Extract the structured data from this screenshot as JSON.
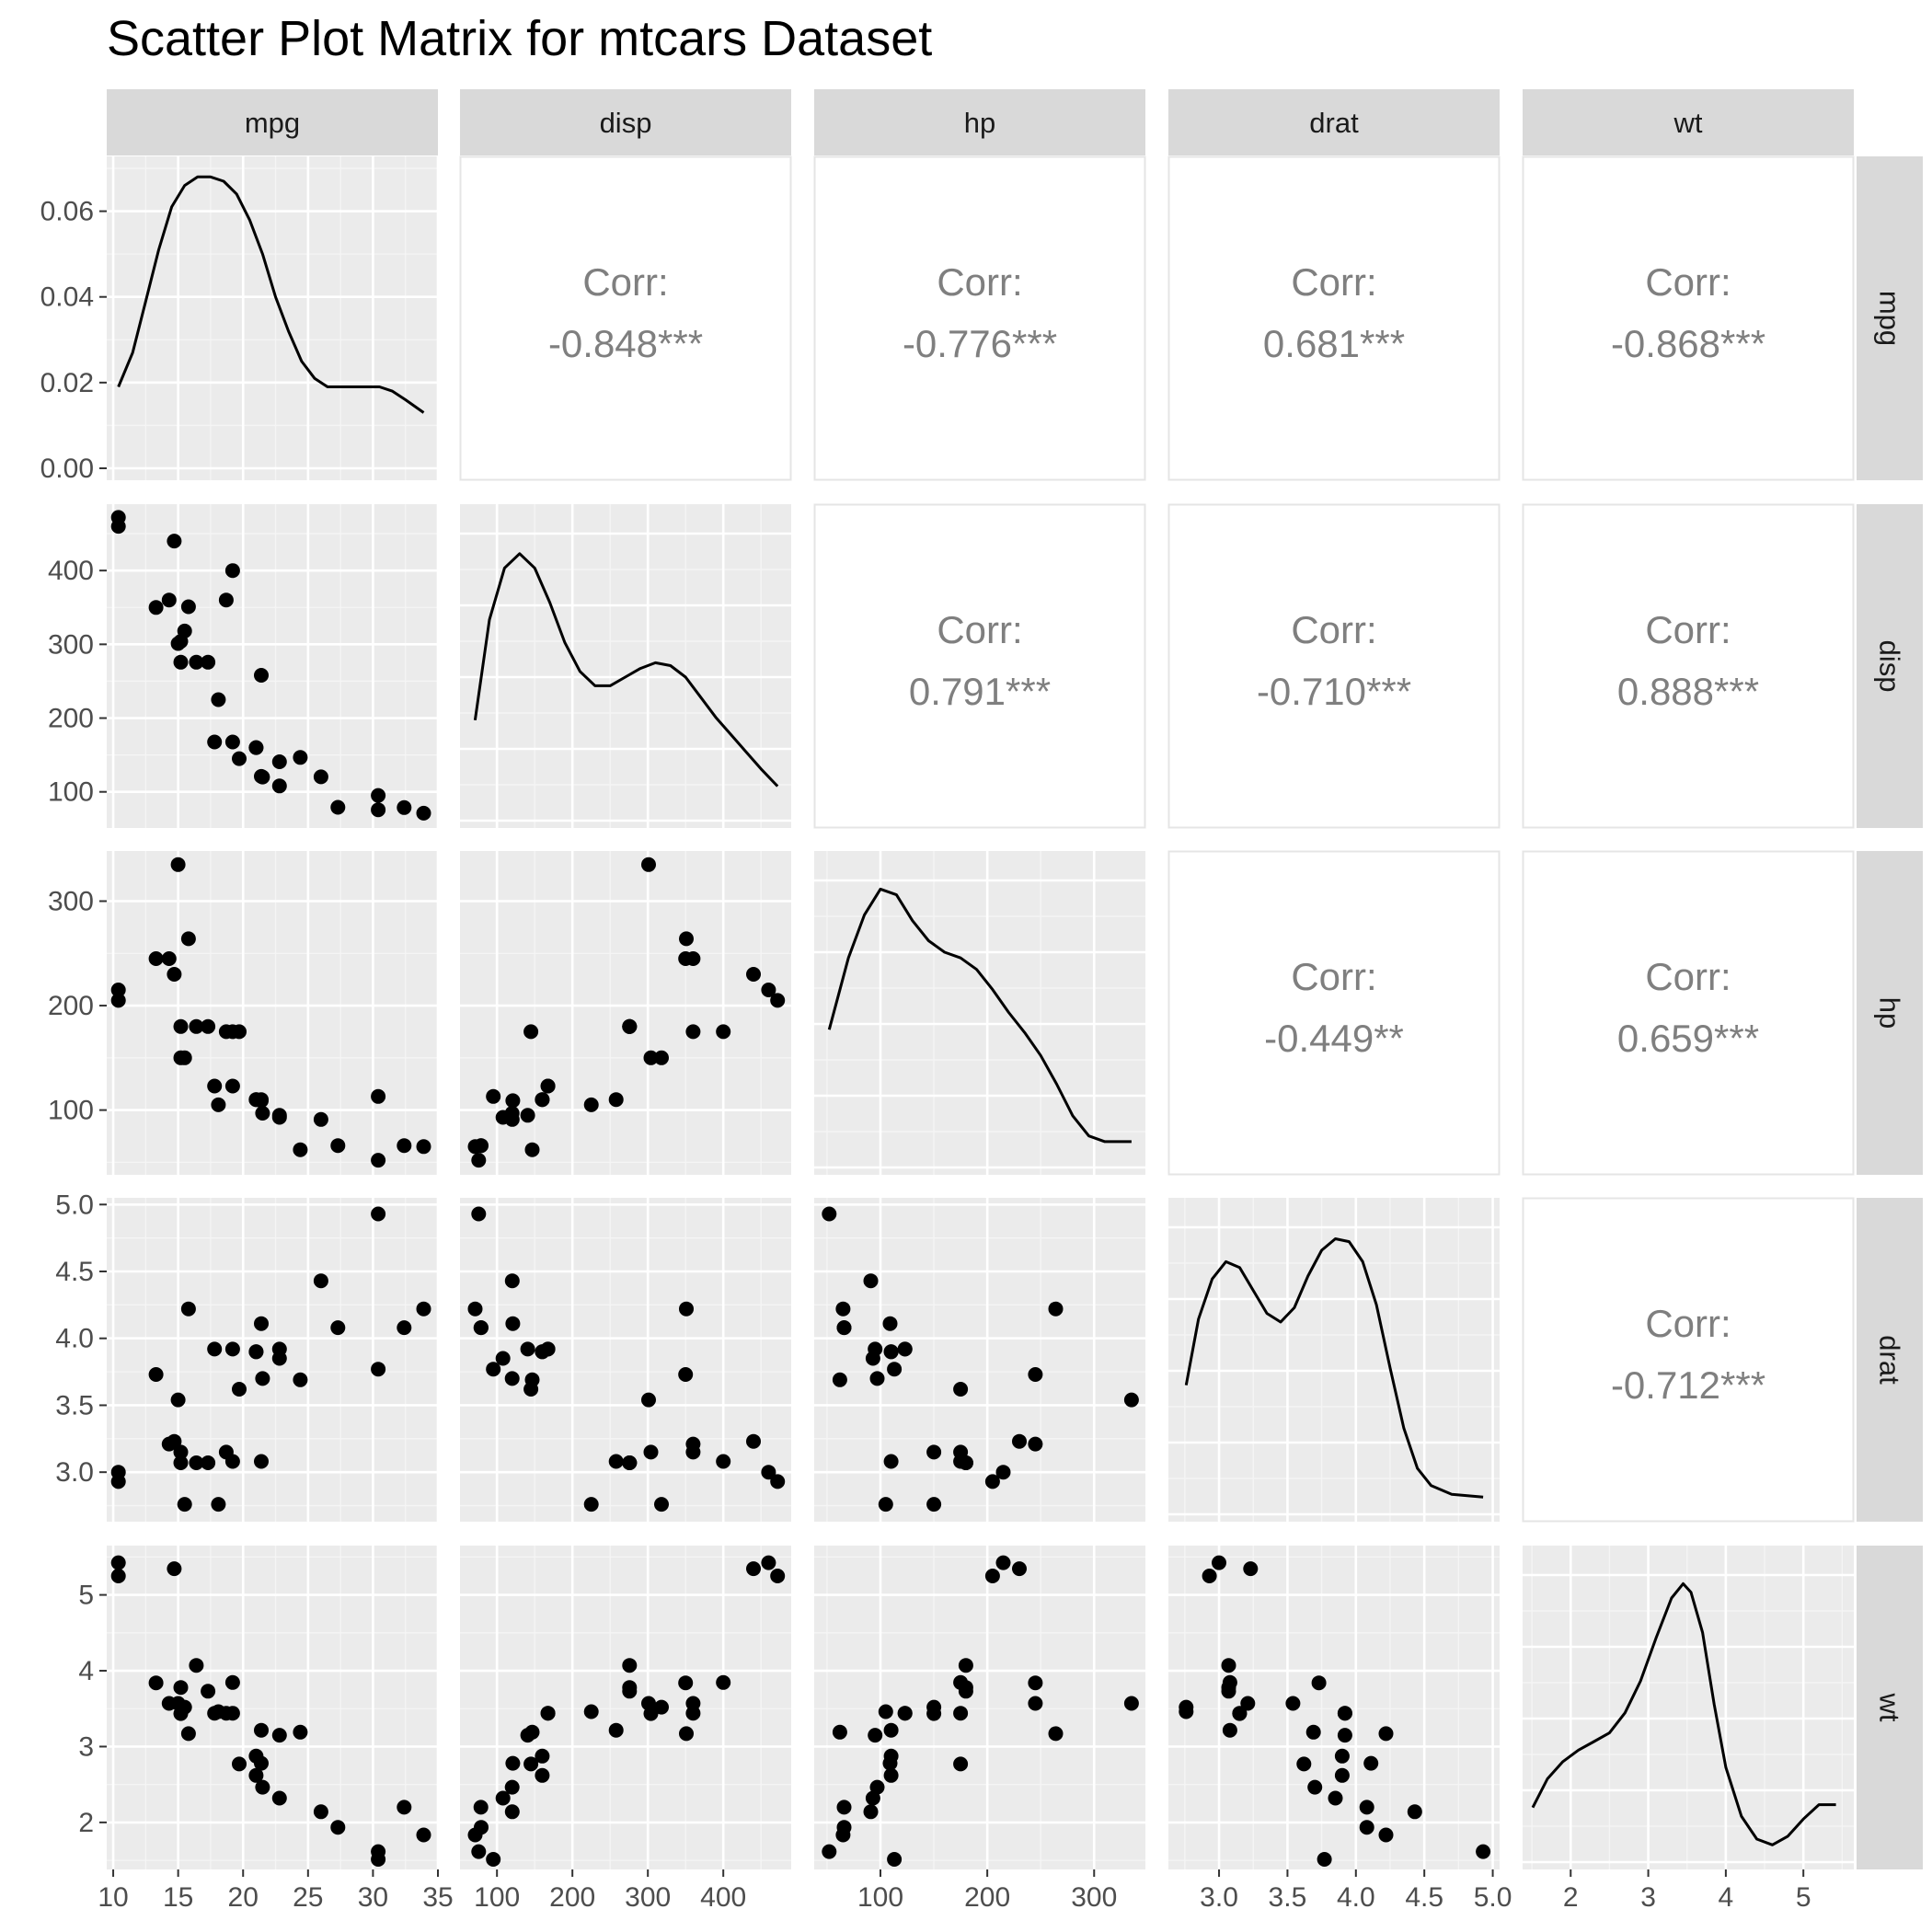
{
  "chart_data": {
    "type": "scatter",
    "title": "Scatter Plot Matrix for mtcars Dataset",
    "variables": [
      "mpg",
      "disp",
      "hp",
      "drat",
      "wt"
    ],
    "corr_label": "Corr:",
    "correlations": {
      "0_1": "-0.848***",
      "0_2": "-0.776***",
      "0_3": "0.681***",
      "0_4": "-0.868***",
      "1_2": "0.791***",
      "1_3": "-0.710***",
      "1_4": "0.888***",
      "2_3": "-0.449**",
      "2_4": "0.659***",
      "3_4": "-0.712***"
    },
    "ranges": {
      "mpg": [
        9.5,
        35.0
      ],
      "disp": [
        51,
        490
      ],
      "hp": [
        38,
        348
      ],
      "drat": [
        2.63,
        5.05
      ],
      "wt": [
        1.38,
        5.65
      ]
    },
    "ticks": {
      "mpg": [
        10,
        15,
        20,
        25,
        30,
        35
      ],
      "disp": [
        100,
        200,
        300,
        400
      ],
      "hp": [
        100,
        200,
        300
      ],
      "drat": [
        3.0,
        3.5,
        4.0,
        4.5,
        5.0
      ],
      "wt": [
        2,
        3,
        4,
        5
      ]
    },
    "tick_labels": {
      "mpg": [
        "10",
        "15",
        "20",
        "25",
        "30",
        "35"
      ],
      "disp": [
        "100",
        "200",
        "300",
        "400"
      ],
      "hp": [
        "100",
        "200",
        "300"
      ],
      "drat": [
        "3.0",
        "3.5",
        "4.0",
        "4.5",
        "5.0"
      ],
      "wt": [
        "2",
        "3",
        "4",
        "5"
      ]
    },
    "density_axis": {
      "range": [
        0,
        0.07
      ],
      "ticks": [
        0.0,
        0.02,
        0.04,
        0.06
      ],
      "tick_labels": [
        "0.00",
        "0.02",
        "0.04",
        "0.06"
      ]
    },
    "densities": {
      "mpg": [
        [
          10.4,
          0.019
        ],
        [
          11.5,
          0.027
        ],
        [
          12.5,
          0.039
        ],
        [
          13.5,
          0.051
        ],
        [
          14.5,
          0.061
        ],
        [
          15.5,
          0.066
        ],
        [
          16.5,
          0.068
        ],
        [
          17.5,
          0.068
        ],
        [
          18.5,
          0.067
        ],
        [
          19.5,
          0.064
        ],
        [
          20.5,
          0.058
        ],
        [
          21.5,
          0.05
        ],
        [
          22.5,
          0.04
        ],
        [
          23.5,
          0.032
        ],
        [
          24.5,
          0.025
        ],
        [
          25.5,
          0.021
        ],
        [
          26.5,
          0.019
        ],
        [
          27.5,
          0.019
        ],
        [
          28.5,
          0.019
        ],
        [
          29.5,
          0.019
        ],
        [
          30.5,
          0.019
        ],
        [
          31.5,
          0.018
        ],
        [
          32.5,
          0.016
        ],
        [
          33.9,
          0.013
        ]
      ],
      "disp": [
        [
          71,
          0.35
        ],
        [
          90,
          0.7
        ],
        [
          110,
          0.88
        ],
        [
          130,
          0.93
        ],
        [
          150,
          0.88
        ],
        [
          170,
          0.76
        ],
        [
          190,
          0.62
        ],
        [
          210,
          0.52
        ],
        [
          230,
          0.47
        ],
        [
          250,
          0.47
        ],
        [
          270,
          0.5
        ],
        [
          290,
          0.53
        ],
        [
          310,
          0.55
        ],
        [
          330,
          0.54
        ],
        [
          350,
          0.5
        ],
        [
          370,
          0.43
        ],
        [
          390,
          0.36
        ],
        [
          410,
          0.3
        ],
        [
          430,
          0.24
        ],
        [
          450,
          0.18
        ],
        [
          472,
          0.12
        ]
      ],
      "hp": [
        [
          52,
          0.48
        ],
        [
          70,
          0.73
        ],
        [
          85,
          0.88
        ],
        [
          100,
          0.97
        ],
        [
          115,
          0.95
        ],
        [
          130,
          0.86
        ],
        [
          145,
          0.79
        ],
        [
          160,
          0.75
        ],
        [
          175,
          0.73
        ],
        [
          190,
          0.69
        ],
        [
          205,
          0.62
        ],
        [
          220,
          0.54
        ],
        [
          235,
          0.47
        ],
        [
          250,
          0.39
        ],
        [
          265,
          0.29
        ],
        [
          280,
          0.18
        ],
        [
          295,
          0.11
        ],
        [
          310,
          0.09
        ],
        [
          335,
          0.09
        ]
      ],
      "drat": [
        [
          2.76,
          0.45
        ],
        [
          2.85,
          0.68
        ],
        [
          2.95,
          0.82
        ],
        [
          3.05,
          0.88
        ],
        [
          3.15,
          0.86
        ],
        [
          3.25,
          0.78
        ],
        [
          3.35,
          0.7
        ],
        [
          3.45,
          0.67
        ],
        [
          3.55,
          0.72
        ],
        [
          3.65,
          0.83
        ],
        [
          3.75,
          0.92
        ],
        [
          3.85,
          0.96
        ],
        [
          3.95,
          0.95
        ],
        [
          4.05,
          0.88
        ],
        [
          4.15,
          0.73
        ],
        [
          4.25,
          0.51
        ],
        [
          4.35,
          0.3
        ],
        [
          4.45,
          0.16
        ],
        [
          4.55,
          0.1
        ],
        [
          4.7,
          0.07
        ],
        [
          4.93,
          0.06
        ]
      ],
      "wt": [
        [
          1.51,
          0.19
        ],
        [
          1.7,
          0.29
        ],
        [
          1.9,
          0.35
        ],
        [
          2.1,
          0.39
        ],
        [
          2.3,
          0.42
        ],
        [
          2.5,
          0.45
        ],
        [
          2.7,
          0.52
        ],
        [
          2.9,
          0.63
        ],
        [
          3.1,
          0.78
        ],
        [
          3.3,
          0.92
        ],
        [
          3.45,
          0.97
        ],
        [
          3.55,
          0.94
        ],
        [
          3.7,
          0.8
        ],
        [
          3.85,
          0.55
        ],
        [
          4.0,
          0.33
        ],
        [
          4.2,
          0.16
        ],
        [
          4.4,
          0.08
        ],
        [
          4.6,
          0.06
        ],
        [
          4.8,
          0.09
        ],
        [
          5.0,
          0.15
        ],
        [
          5.2,
          0.2
        ],
        [
          5.42,
          0.2
        ]
      ]
    },
    "rows": [
      [
        21.0,
        160,
        110,
        3.9,
        2.62
      ],
      [
        21.0,
        160,
        110,
        3.9,
        2.875
      ],
      [
        22.8,
        108,
        93,
        3.85,
        2.32
      ],
      [
        21.4,
        258,
        110,
        3.08,
        3.215
      ],
      [
        18.7,
        360,
        175,
        3.15,
        3.44
      ],
      [
        18.1,
        225,
        105,
        2.76,
        3.46
      ],
      [
        14.3,
        360,
        245,
        3.21,
        3.57
      ],
      [
        24.4,
        146.7,
        62,
        3.69,
        3.19
      ],
      [
        22.8,
        140.8,
        95,
        3.92,
        3.15
      ],
      [
        19.2,
        167.6,
        123,
        3.92,
        3.44
      ],
      [
        17.8,
        167.6,
        123,
        3.92,
        3.44
      ],
      [
        16.4,
        275.8,
        180,
        3.07,
        4.07
      ],
      [
        17.3,
        275.8,
        180,
        3.07,
        3.73
      ],
      [
        15.2,
        275.8,
        180,
        3.07,
        3.78
      ],
      [
        10.4,
        472,
        205,
        2.93,
        5.25
      ],
      [
        10.4,
        460,
        215,
        3.0,
        5.424
      ],
      [
        14.7,
        440,
        230,
        3.23,
        5.345
      ],
      [
        32.4,
        78.7,
        66,
        4.08,
        2.2
      ],
      [
        30.4,
        75.7,
        52,
        4.93,
        1.615
      ],
      [
        33.9,
        71.1,
        65,
        4.22,
        1.835
      ],
      [
        21.5,
        120.1,
        97,
        3.7,
        2.465
      ],
      [
        15.5,
        318,
        150,
        2.76,
        3.52
      ],
      [
        15.2,
        304,
        150,
        3.15,
        3.435
      ],
      [
        13.3,
        350,
        245,
        3.73,
        3.84
      ],
      [
        19.2,
        400,
        175,
        3.08,
        3.845
      ],
      [
        27.3,
        79,
        66,
        4.08,
        1.935
      ],
      [
        26.0,
        120.3,
        91,
        4.43,
        2.14
      ],
      [
        30.4,
        95.1,
        113,
        3.77,
        1.513
      ],
      [
        15.8,
        351,
        264,
        4.22,
        3.17
      ],
      [
        19.7,
        145,
        175,
        3.62,
        2.77
      ],
      [
        15.0,
        301,
        335,
        3.54,
        3.57
      ],
      [
        21.4,
        121,
        109,
        4.11,
        2.78
      ]
    ]
  }
}
